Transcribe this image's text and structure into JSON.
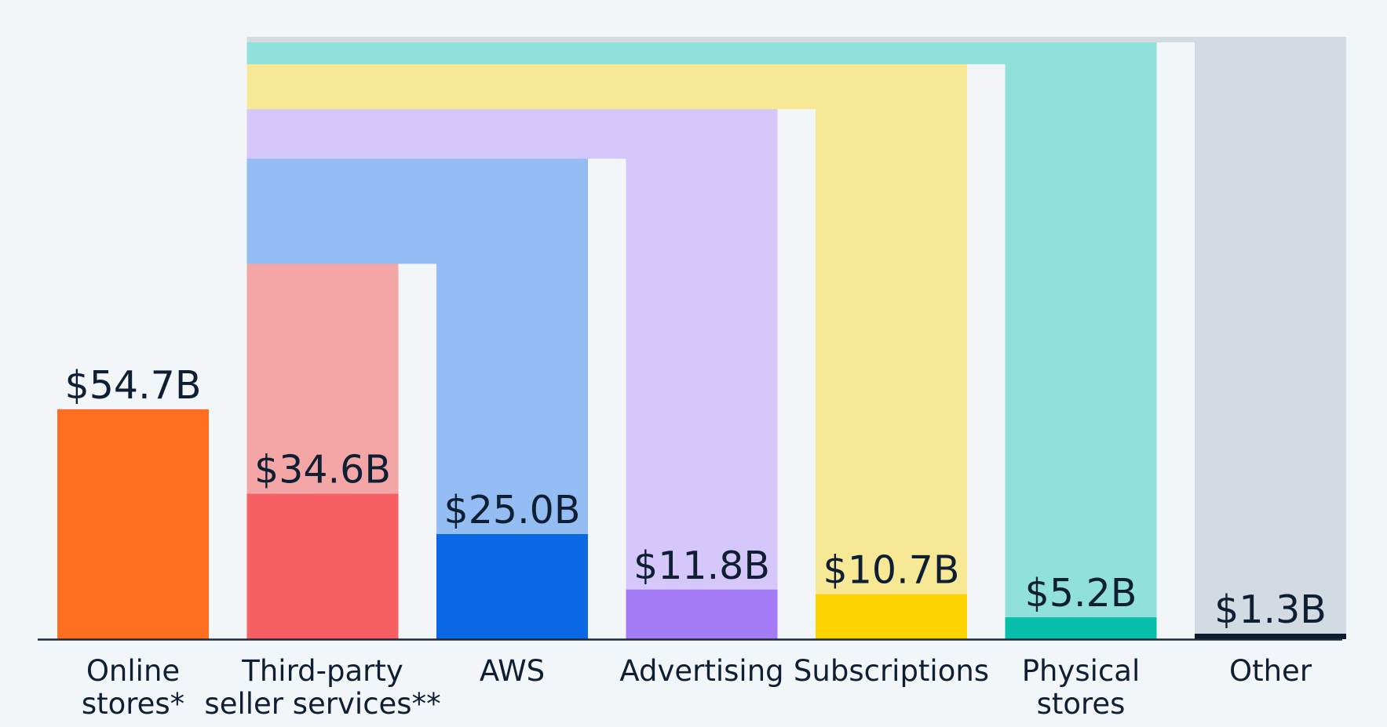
{
  "chart_data": {
    "type": "bar",
    "chart_style": "waterfall breakdown with connector bands from total",
    "title": "",
    "xlabel": "",
    "ylabel": "",
    "ylim": [
      0,
      143.3
    ],
    "grid": false,
    "legend": "none",
    "total_band_color": "#d3dbe2",
    "baseline_color": "#1c2a3a",
    "text_color": "#0f1f33",
    "categories": [
      "Online stores*",
      "Third-party seller services**",
      "AWS",
      "Advertising",
      "Subscriptions",
      "Physical stores",
      "Other"
    ],
    "category_label_lines": [
      [
        "Online",
        "stores*"
      ],
      [
        "Third-party",
        "seller services**"
      ],
      [
        "AWS"
      ],
      [
        "Advertising"
      ],
      [
        "Subscriptions"
      ],
      [
        "Physical",
        "stores"
      ],
      [
        "Other"
      ]
    ],
    "values": [
      54.7,
      34.6,
      25.0,
      11.8,
      10.7,
      5.2,
      1.3
    ],
    "value_labels": [
      "$54.7B",
      "$34.6B",
      "$25.0B",
      "$11.8B",
      "$10.7B",
      "$5.2B",
      "$1.3B"
    ],
    "bar_colors": [
      "#ff6d21",
      "#f66063",
      "#0a68e4",
      "#a37cf5",
      "#fed400",
      "#06beaa",
      "#0c1c30"
    ],
    "band_colors": [
      null,
      "#f4a6a7",
      "#93bdf3",
      "#d5c7fa",
      "#f7e896",
      "#90e0dc",
      "#d3dbe2"
    ]
  }
}
